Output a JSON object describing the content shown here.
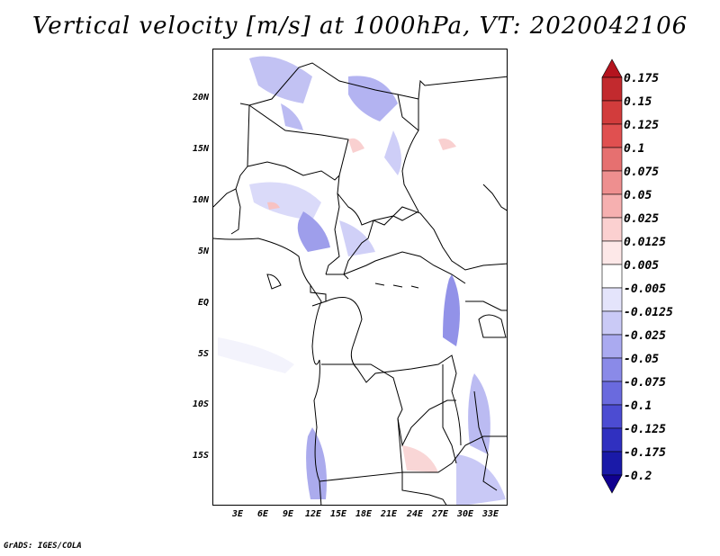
{
  "title": "Vertical velocity [m/s] at 1000hPa, VT: 2020042106",
  "footer": "GrADS: IGES/COLA",
  "y_axis_labels": [
    "20N",
    "15N",
    "10N",
    "5N",
    "EQ",
    "5S",
    "10S",
    "15S"
  ],
  "x_axis_labels": [
    "3E",
    "6E",
    "9E",
    "12E",
    "15E",
    "18E",
    "21E",
    "24E",
    "27E",
    "30E",
    "33E"
  ],
  "colorbar": {
    "labels": [
      "0.175",
      "0.15",
      "0.125",
      "0.1",
      "0.075",
      "0.05",
      "0.025",
      "0.0125",
      "0.005",
      "-0.005",
      "-0.0125",
      "-0.025",
      "-0.05",
      "-0.075",
      "-0.1",
      "-0.125",
      "-0.175",
      "-0.2"
    ],
    "colors": [
      "#b4141e",
      "#c22a2e",
      "#d23c3c",
      "#e05050",
      "#e67070",
      "#ee8f8f",
      "#f6b0b0",
      "#fbd0d0",
      "#fde8e8",
      "#ffffff",
      "#e4e4fb",
      "#cacaf6",
      "#aaaaf0",
      "#8a8ae8",
      "#6a6ade",
      "#4c4cd2",
      "#3030c0",
      "#1a1aa8",
      "#100090"
    ]
  }
}
